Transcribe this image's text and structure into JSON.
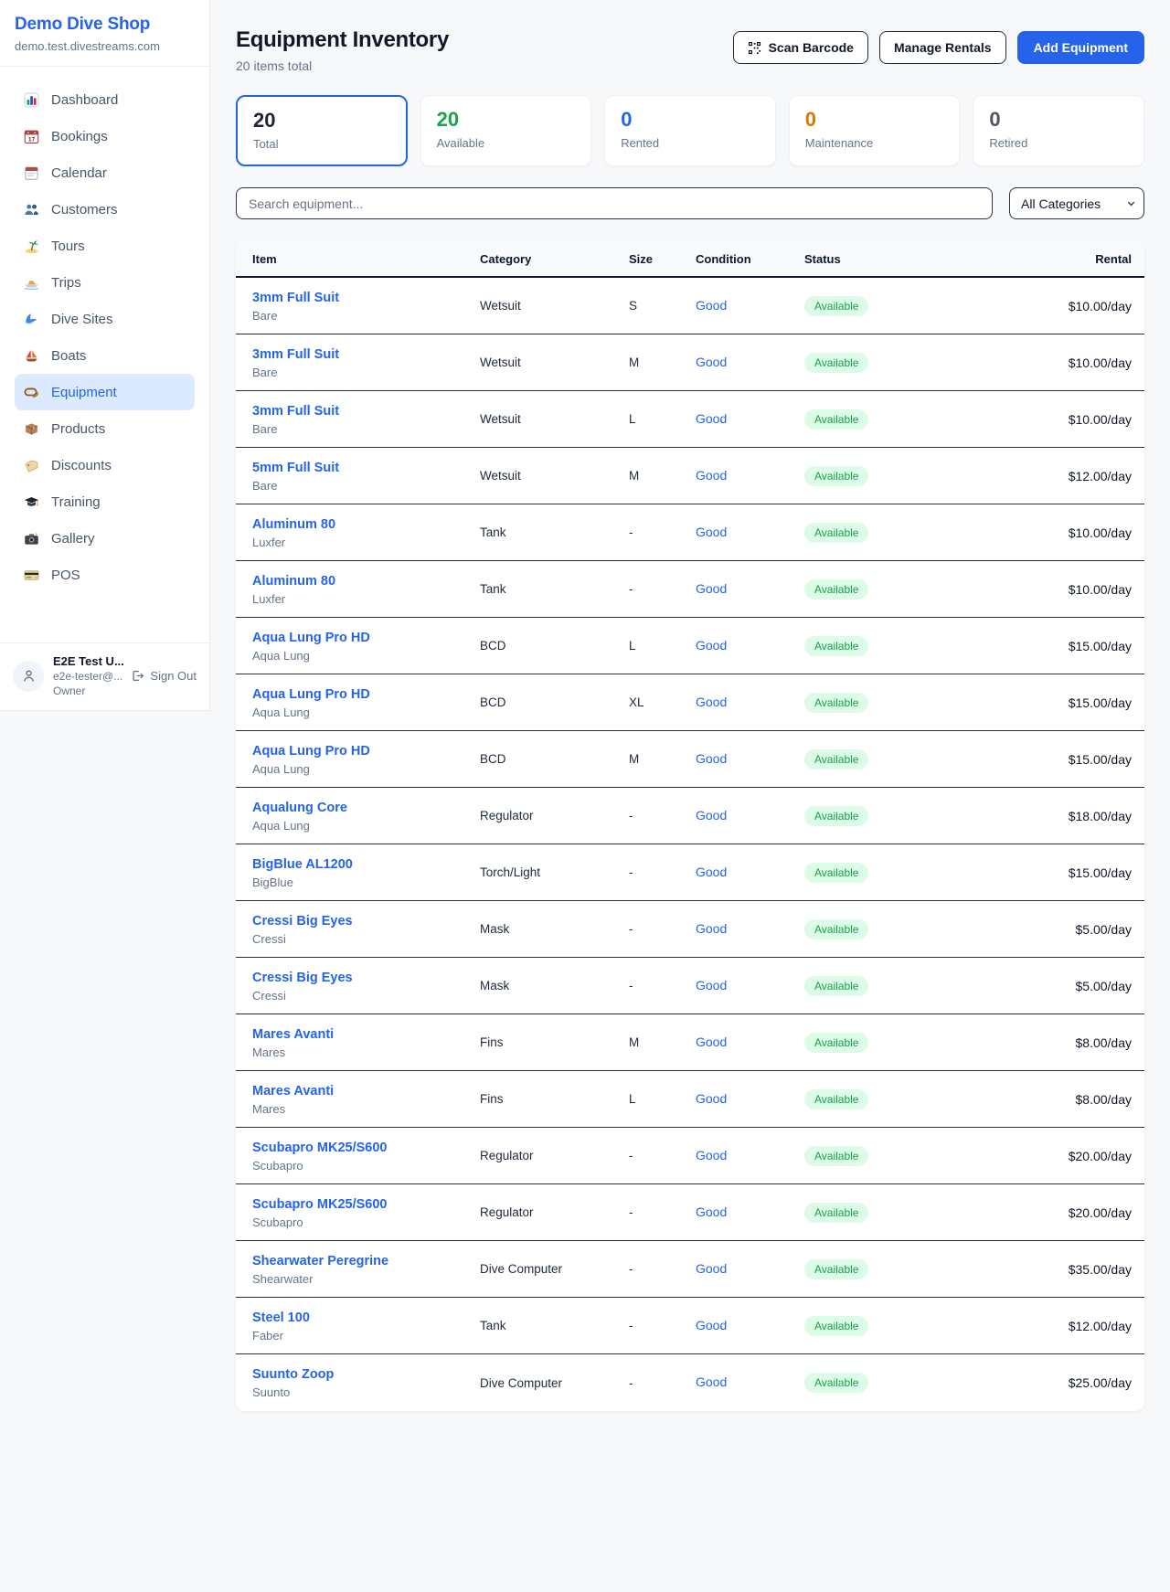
{
  "sidebar": {
    "brand": "Demo Dive Shop",
    "domain": "demo.test.divestreams.com",
    "items": [
      {
        "label": "Dashboard",
        "icon": "bar-chart-icon",
        "active": false
      },
      {
        "label": "Bookings",
        "icon": "calendar-date-icon",
        "active": false
      },
      {
        "label": "Calendar",
        "icon": "calendar-pad-icon",
        "active": false
      },
      {
        "label": "Customers",
        "icon": "people-icon",
        "active": false
      },
      {
        "label": "Tours",
        "icon": "palm-island-icon",
        "active": false
      },
      {
        "label": "Trips",
        "icon": "speedboat-icon",
        "active": false
      },
      {
        "label": "Dive Sites",
        "icon": "wave-icon",
        "active": false
      },
      {
        "label": "Boats",
        "icon": "sailboat-icon",
        "active": false
      },
      {
        "label": "Equipment",
        "icon": "dive-mask-icon",
        "active": true
      },
      {
        "label": "Products",
        "icon": "package-icon",
        "active": false
      },
      {
        "label": "Discounts",
        "icon": "tag-icon",
        "active": false
      },
      {
        "label": "Training",
        "icon": "grad-cap-icon",
        "active": false
      },
      {
        "label": "Gallery",
        "icon": "camera-icon",
        "active": false
      },
      {
        "label": "POS",
        "icon": "credit-card-icon",
        "active": false
      }
    ],
    "user": {
      "name": "E2E Test U...",
      "email": "e2e-tester@...",
      "role": "Owner",
      "sign_out_label": "Sign Out"
    }
  },
  "header": {
    "title": "Equipment Inventory",
    "subtitle": "20 items total",
    "scan_barcode_label": "Scan Barcode",
    "manage_rentals_label": "Manage Rentals",
    "add_equipment_label": "Add Equipment"
  },
  "stats": [
    {
      "value": "20",
      "label": "Total",
      "color": "#1e2433",
      "selected": true
    },
    {
      "value": "20",
      "label": "Available",
      "color": "#16a34a",
      "selected": false
    },
    {
      "value": "0",
      "label": "Rented",
      "color": "#2563eb",
      "selected": false
    },
    {
      "value": "0",
      "label": "Maintenance",
      "color": "#d97706",
      "selected": false
    },
    {
      "value": "0",
      "label": "Retired",
      "color": "#4b5563",
      "selected": false
    }
  ],
  "filters": {
    "search_placeholder": "Search equipment...",
    "category_selected": "All Categories"
  },
  "table": {
    "columns": [
      "Item",
      "Category",
      "Size",
      "Condition",
      "Status",
      "Rental"
    ],
    "rows": [
      {
        "item": "3mm Full Suit",
        "brand": "Bare",
        "category": "Wetsuit",
        "size": "S",
        "condition": "Good",
        "status": "Available",
        "rental": "$10.00/day"
      },
      {
        "item": "3mm Full Suit",
        "brand": "Bare",
        "category": "Wetsuit",
        "size": "M",
        "condition": "Good",
        "status": "Available",
        "rental": "$10.00/day"
      },
      {
        "item": "3mm Full Suit",
        "brand": "Bare",
        "category": "Wetsuit",
        "size": "L",
        "condition": "Good",
        "status": "Available",
        "rental": "$10.00/day"
      },
      {
        "item": "5mm Full Suit",
        "brand": "Bare",
        "category": "Wetsuit",
        "size": "M",
        "condition": "Good",
        "status": "Available",
        "rental": "$12.00/day"
      },
      {
        "item": "Aluminum 80",
        "brand": "Luxfer",
        "category": "Tank",
        "size": "-",
        "condition": "Good",
        "status": "Available",
        "rental": "$10.00/day"
      },
      {
        "item": "Aluminum 80",
        "brand": "Luxfer",
        "category": "Tank",
        "size": "-",
        "condition": "Good",
        "status": "Available",
        "rental": "$10.00/day"
      },
      {
        "item": "Aqua Lung Pro HD",
        "brand": "Aqua Lung",
        "category": "BCD",
        "size": "L",
        "condition": "Good",
        "status": "Available",
        "rental": "$15.00/day"
      },
      {
        "item": "Aqua Lung Pro HD",
        "brand": "Aqua Lung",
        "category": "BCD",
        "size": "XL",
        "condition": "Good",
        "status": "Available",
        "rental": "$15.00/day"
      },
      {
        "item": "Aqua Lung Pro HD",
        "brand": "Aqua Lung",
        "category": "BCD",
        "size": "M",
        "condition": "Good",
        "status": "Available",
        "rental": "$15.00/day"
      },
      {
        "item": "Aqualung Core",
        "brand": "Aqua Lung",
        "category": "Regulator",
        "size": "-",
        "condition": "Good",
        "status": "Available",
        "rental": "$18.00/day"
      },
      {
        "item": "BigBlue AL1200",
        "brand": "BigBlue",
        "category": "Torch/Light",
        "size": "-",
        "condition": "Good",
        "status": "Available",
        "rental": "$15.00/day"
      },
      {
        "item": "Cressi Big Eyes",
        "brand": "Cressi",
        "category": "Mask",
        "size": "-",
        "condition": "Good",
        "status": "Available",
        "rental": "$5.00/day"
      },
      {
        "item": "Cressi Big Eyes",
        "brand": "Cressi",
        "category": "Mask",
        "size": "-",
        "condition": "Good",
        "status": "Available",
        "rental": "$5.00/day"
      },
      {
        "item": "Mares Avanti",
        "brand": "Mares",
        "category": "Fins",
        "size": "M",
        "condition": "Good",
        "status": "Available",
        "rental": "$8.00/day"
      },
      {
        "item": "Mares Avanti",
        "brand": "Mares",
        "category": "Fins",
        "size": "L",
        "condition": "Good",
        "status": "Available",
        "rental": "$8.00/day"
      },
      {
        "item": "Scubapro MK25/S600",
        "brand": "Scubapro",
        "category": "Regulator",
        "size": "-",
        "condition": "Good",
        "status": "Available",
        "rental": "$20.00/day"
      },
      {
        "item": "Scubapro MK25/S600",
        "brand": "Scubapro",
        "category": "Regulator",
        "size": "-",
        "condition": "Good",
        "status": "Available",
        "rental": "$20.00/day"
      },
      {
        "item": "Shearwater Peregrine",
        "brand": "Shearwater",
        "category": "Dive Computer",
        "size": "-",
        "condition": "Good",
        "status": "Available",
        "rental": "$35.00/day"
      },
      {
        "item": "Steel 100",
        "brand": "Faber",
        "category": "Tank",
        "size": "-",
        "condition": "Good",
        "status": "Available",
        "rental": "$12.00/day"
      },
      {
        "item": "Suunto Zoop",
        "brand": "Suunto",
        "category": "Dive Computer",
        "size": "-",
        "condition": "Good",
        "status": "Available",
        "rental": "$25.00/day"
      }
    ]
  },
  "colors": {
    "accent_blue": "#2563eb",
    "status_green": "#16a34a",
    "status_green_bg": "#dcfce7",
    "maintenance_orange": "#d97706",
    "retired_gray": "#4b5563"
  }
}
